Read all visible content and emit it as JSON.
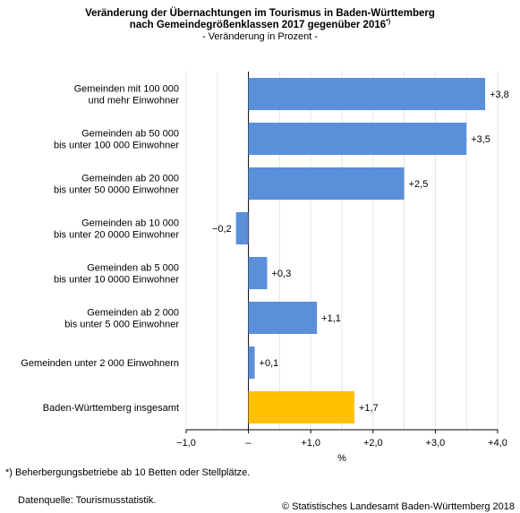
{
  "header": {
    "title_line1": "Veränderung der Übernachtungen im Tourismus in Baden-Württemberg",
    "title_line2": "nach Gemeindegrößenklassen 2017 gegenüber 2016",
    "title_sup": "*)",
    "subtitle": "- Veränderung in Prozent -"
  },
  "chart_data": {
    "type": "bar",
    "orientation": "horizontal",
    "categories": [
      [
        "Gemeinden mit 100 000",
        "und mehr Einwohner"
      ],
      [
        "Gemeinden ab 50 000",
        "bis unter 100 000 Einwohner"
      ],
      [
        "Gemeinden ab 20 000",
        "bis unter 50 0000 Einwohner"
      ],
      [
        "Gemeinden ab 10 000",
        "bis unter 20 0000 Einwohner"
      ],
      [
        "Gemeinden ab 5 000",
        "bis unter 10 0000 Einwohner"
      ],
      [
        "Gemeinden ab 2 000",
        "bis unter 5 000 Einwohner"
      ],
      [
        "Gemeinden unter 2 000 Einwohnern"
      ],
      [
        "Baden-Württemberg insgesamt"
      ]
    ],
    "values": [
      3.8,
      3.5,
      2.5,
      -0.2,
      0.3,
      1.1,
      0.1,
      1.7
    ],
    "value_labels": [
      "+3,8",
      "+3,5",
      "+2,5",
      "−0,2",
      "+0,3",
      "+1,1",
      "+0,1",
      "+1,7"
    ],
    "bar_colors": [
      "#5b8fd9",
      "#5b8fd9",
      "#5b8fd9",
      "#5b8fd9",
      "#5b8fd9",
      "#5b8fd9",
      "#5b8fd9",
      "#ffc000"
    ],
    "xlim": [
      -1.0,
      4.0
    ],
    "xticks": [
      -1.0,
      0,
      1.0,
      2.0,
      3.0,
      4.0
    ],
    "xtick_labels": [
      "−1,0",
      "–",
      "+1,0",
      "+2,0",
      "+3,0",
      "+4,0"
    ],
    "xlabel": "%",
    "grid": "vertical",
    "grid_color": "#e6e6e6"
  },
  "footer": {
    "footnote": "*) Beherbergungsbetriebe ab 10 Betten oder Stellplätze.",
    "source": "Datenquelle: Tourismusstatistik.",
    "copyright": "© Statistisches Landesamt Baden-Württemberg 2018"
  }
}
